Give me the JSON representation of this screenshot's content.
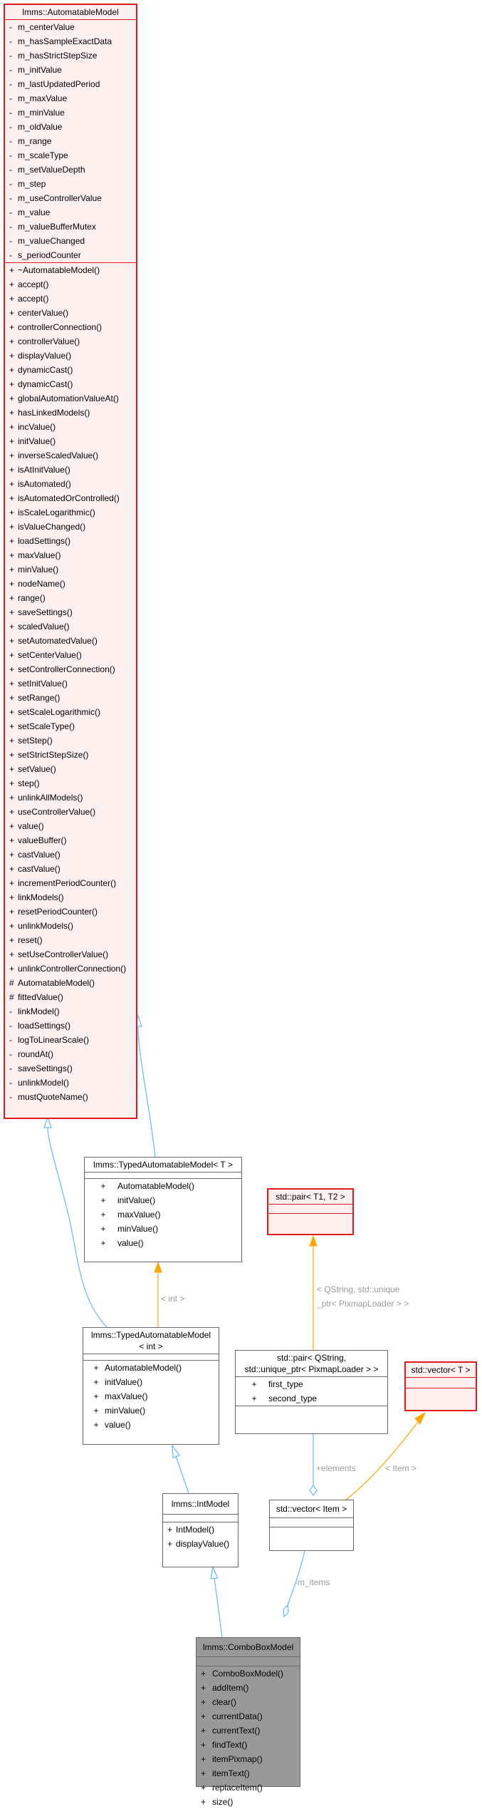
{
  "automatable_model": {
    "title": "lmms::AutomatableModel",
    "attributes": [
      {
        "vis": "-",
        "name": "m_centerValue"
      },
      {
        "vis": "-",
        "name": "m_hasSampleExactData"
      },
      {
        "vis": "-",
        "name": "m_hasStrictStepSize"
      },
      {
        "vis": "-",
        "name": "m_initValue"
      },
      {
        "vis": "-",
        "name": "m_lastUpdatedPeriod"
      },
      {
        "vis": "-",
        "name": "m_maxValue"
      },
      {
        "vis": "-",
        "name": "m_minValue"
      },
      {
        "vis": "-",
        "name": "m_oldValue"
      },
      {
        "vis": "-",
        "name": "m_range"
      },
      {
        "vis": "-",
        "name": "m_scaleType"
      },
      {
        "vis": "-",
        "name": "m_setValueDepth"
      },
      {
        "vis": "-",
        "name": "m_step"
      },
      {
        "vis": "-",
        "name": "m_useControllerValue"
      },
      {
        "vis": "-",
        "name": "m_value"
      },
      {
        "vis": "-",
        "name": "m_valueBufferMutex"
      },
      {
        "vis": "-",
        "name": "m_valueChanged"
      },
      {
        "vis": "-",
        "name": "s_periodCounter"
      }
    ],
    "methods": [
      {
        "vis": "+",
        "name": "~AutomatableModel()"
      },
      {
        "vis": "+",
        "name": "accept()"
      },
      {
        "vis": "+",
        "name": "accept()"
      },
      {
        "vis": "+",
        "name": "centerValue()"
      },
      {
        "vis": "+",
        "name": "controllerConnection()"
      },
      {
        "vis": "+",
        "name": "controllerValue()"
      },
      {
        "vis": "+",
        "name": "displayValue()"
      },
      {
        "vis": "+",
        "name": "dynamicCast()"
      },
      {
        "vis": "+",
        "name": "dynamicCast()"
      },
      {
        "vis": "+",
        "name": "globalAutomationValueAt()"
      },
      {
        "vis": "+",
        "name": "hasLinkedModels()"
      },
      {
        "vis": "+",
        "name": "incValue()"
      },
      {
        "vis": "+",
        "name": "initValue()"
      },
      {
        "vis": "+",
        "name": "inverseScaledValue()"
      },
      {
        "vis": "+",
        "name": "isAtInitValue()"
      },
      {
        "vis": "+",
        "name": "isAutomated()"
      },
      {
        "vis": "+",
        "name": "isAutomatedOrControlled()"
      },
      {
        "vis": "+",
        "name": "isScaleLogarithmic()"
      },
      {
        "vis": "+",
        "name": "isValueChanged()"
      },
      {
        "vis": "+",
        "name": "loadSettings()"
      },
      {
        "vis": "+",
        "name": "maxValue()"
      },
      {
        "vis": "+",
        "name": "minValue()"
      },
      {
        "vis": "+",
        "name": "nodeName()"
      },
      {
        "vis": "+",
        "name": "range()"
      },
      {
        "vis": "+",
        "name": "saveSettings()"
      },
      {
        "vis": "+",
        "name": "scaledValue()"
      },
      {
        "vis": "+",
        "name": "setAutomatedValue()"
      },
      {
        "vis": "+",
        "name": "setCenterValue()"
      },
      {
        "vis": "+",
        "name": "setControllerConnection()"
      },
      {
        "vis": "+",
        "name": "setInitValue()"
      },
      {
        "vis": "+",
        "name": "setRange()"
      },
      {
        "vis": "+",
        "name": "setScaleLogarithmic()"
      },
      {
        "vis": "+",
        "name": "setScaleType()"
      },
      {
        "vis": "+",
        "name": "setStep()"
      },
      {
        "vis": "+",
        "name": "setStrictStepSize()"
      },
      {
        "vis": "+",
        "name": "setValue()"
      },
      {
        "vis": "+",
        "name": "step()"
      },
      {
        "vis": "+",
        "name": "unlinkAllModels()"
      },
      {
        "vis": "+",
        "name": "useControllerValue()"
      },
      {
        "vis": "+",
        "name": "value()"
      },
      {
        "vis": "+",
        "name": "valueBuffer()"
      },
      {
        "vis": "+",
        "name": "castValue()"
      },
      {
        "vis": "+",
        "name": "castValue()"
      },
      {
        "vis": "+",
        "name": "incrementPeriodCounter()"
      },
      {
        "vis": "+",
        "name": "linkModels()"
      },
      {
        "vis": "+",
        "name": "resetPeriodCounter()"
      },
      {
        "vis": "+",
        "name": "unlinkModels()"
      },
      {
        "vis": "+",
        "name": "reset()"
      },
      {
        "vis": "+",
        "name": "setUseControllerValue()"
      },
      {
        "vis": "+",
        "name": "unlinkControllerConnection()"
      },
      {
        "vis": "#",
        "name": "AutomatableModel()"
      },
      {
        "vis": "#",
        "name": "fittedValue()"
      },
      {
        "vis": "-",
        "name": "linkModel()"
      },
      {
        "vis": "-",
        "name": "loadSettings()"
      },
      {
        "vis": "-",
        "name": "logToLinearScale()"
      },
      {
        "vis": "-",
        "name": "roundAt()"
      },
      {
        "vis": "-",
        "name": "saveSettings()"
      },
      {
        "vis": "-",
        "name": "unlinkModel()"
      },
      {
        "vis": "-",
        "name": "mustQuoteName()"
      }
    ]
  },
  "typed_automatable_model_t": {
    "title": "lmms::TypedAutomatableModel< T >",
    "methods": [
      {
        "vis": "+",
        "name": "AutomatableModel()"
      },
      {
        "vis": "+",
        "name": "initValue()"
      },
      {
        "vis": "+",
        "name": "maxValue()"
      },
      {
        "vis": "+",
        "name": "minValue()"
      },
      {
        "vis": "+",
        "name": "value()"
      }
    ]
  },
  "typed_automatable_model_int": {
    "title_line1": "lmms::TypedAutomatableModel",
    "title_line2": "< int >",
    "methods": [
      {
        "vis": "+",
        "name": "AutomatableModel()"
      },
      {
        "vis": "+",
        "name": "initValue()"
      },
      {
        "vis": "+",
        "name": "maxValue()"
      },
      {
        "vis": "+",
        "name": "minValue()"
      },
      {
        "vis": "+",
        "name": "value()"
      }
    ]
  },
  "int_model": {
    "title": "lmms::IntModel",
    "methods": [
      {
        "vis": "+",
        "name": "IntModel()"
      },
      {
        "vis": "+",
        "name": "displayValue()"
      }
    ]
  },
  "combo_box_model": {
    "title": "lmms::ComboBoxModel",
    "methods": [
      {
        "vis": "+",
        "name": "ComboBoxModel()"
      },
      {
        "vis": "+",
        "name": "addItem()"
      },
      {
        "vis": "+",
        "name": "clear()"
      },
      {
        "vis": "+",
        "name": "currentData()"
      },
      {
        "vis": "+",
        "name": "currentText()"
      },
      {
        "vis": "+",
        "name": "findText()"
      },
      {
        "vis": "+",
        "name": "itemPixmap()"
      },
      {
        "vis": "+",
        "name": "itemText()"
      },
      {
        "vis": "+",
        "name": "replaceItem()"
      },
      {
        "vis": "+",
        "name": "size()"
      }
    ]
  },
  "std_pair_template": {
    "title": "std::pair< T1, T2 >"
  },
  "std_pair_qstring": {
    "title_line1": "std::pair< QString,",
    "title_line2": "std::unique_ptr< PixmapLoader > >",
    "attributes": [
      {
        "vis": "+",
        "name": "first_type"
      },
      {
        "vis": "+",
        "name": "second_type"
      }
    ]
  },
  "std_vector_template": {
    "title": "std::vector< T >"
  },
  "std_vector_item": {
    "title": "std::vector< Item >"
  },
  "edge_labels": {
    "int_binding": "< int >",
    "pair_binding_line1": "< QString, std::unique",
    "pair_binding_line2": "_ptr< PixmapLoader > >",
    "elements": "+elements",
    "item_binding": "< Item >",
    "m_items": "-m_items"
  },
  "colors": {
    "inheritance_edge": "#63b8ff",
    "template_edge": "#ffa500",
    "highlight_border": "#e31a1c",
    "focus_fill": "#999999",
    "incomplete_fill": "#fff0f0"
  }
}
